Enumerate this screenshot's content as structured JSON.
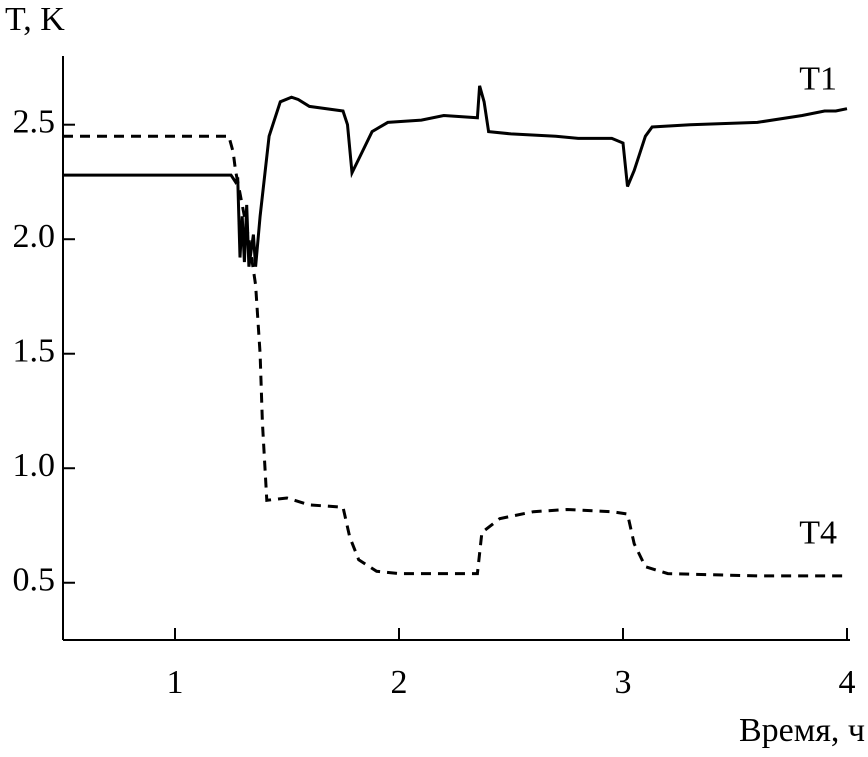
{
  "chart_data": {
    "type": "line",
    "xlabel": "Время, ч",
    "ylabel": "T, K",
    "xlim": [
      0.5,
      4.0
    ],
    "ylim": [
      0.25,
      2.8
    ],
    "xticks": [
      1,
      2,
      3,
      4
    ],
    "yticks": [
      {
        "value": 0.5,
        "label": "0.5"
      },
      {
        "value": 1,
        "label": "1.0"
      },
      {
        "value": 1.5,
        "label": "1.5"
      },
      {
        "value": 2,
        "label": "2.0"
      },
      {
        "value": 2.5,
        "label": "2.5"
      }
    ],
    "grid": false,
    "series": [
      {
        "name": "T1",
        "color": "#000000",
        "dash": false,
        "x": [
          0.5,
          1.25,
          1.27,
          1.28,
          1.29,
          1.3,
          1.31,
          1.32,
          1.33,
          1.35,
          1.36,
          1.38,
          1.42,
          1.47,
          1.52,
          1.55,
          1.6,
          1.75,
          1.77,
          1.79,
          1.82,
          1.88,
          1.95,
          2.1,
          2.2,
          2.35,
          2.36,
          2.38,
          2.4,
          2.5,
          2.7,
          2.8,
          2.95,
          3.0,
          3.02,
          3.05,
          3.1,
          3.13,
          3.3,
          3.6,
          3.8,
          3.9,
          3.95,
          4.0
        ],
        "values": [
          2.28,
          2.28,
          2.25,
          2.27,
          1.92,
          2.1,
          1.9,
          2.15,
          1.88,
          2.02,
          1.88,
          2.1,
          2.45,
          2.6,
          2.62,
          2.61,
          2.58,
          2.56,
          2.5,
          2.29,
          2.35,
          2.47,
          2.51,
          2.52,
          2.54,
          2.53,
          2.67,
          2.6,
          2.47,
          2.46,
          2.45,
          2.44,
          2.44,
          2.42,
          2.23,
          2.3,
          2.45,
          2.49,
          2.5,
          2.51,
          2.54,
          2.56,
          2.56,
          2.57
        ]
      },
      {
        "name": "T4",
        "color": "#000000",
        "dash": true,
        "x": [
          0.5,
          1.24,
          1.26,
          1.27,
          1.29,
          1.3,
          1.33,
          1.36,
          1.38,
          1.39,
          1.41,
          1.5,
          1.6,
          1.75,
          1.78,
          1.82,
          1.9,
          2.0,
          2.35,
          2.37,
          2.45,
          2.6,
          2.75,
          2.95,
          3.02,
          3.05,
          3.1,
          3.2,
          3.6,
          4.0
        ],
        "values": [
          2.45,
          2.45,
          2.38,
          2.3,
          2.2,
          2.15,
          2.0,
          1.8,
          1.5,
          1.2,
          0.86,
          0.87,
          0.84,
          0.83,
          0.7,
          0.6,
          0.55,
          0.54,
          0.54,
          0.72,
          0.78,
          0.81,
          0.82,
          0.81,
          0.8,
          0.67,
          0.57,
          0.54,
          0.53,
          0.53
        ]
      }
    ]
  }
}
